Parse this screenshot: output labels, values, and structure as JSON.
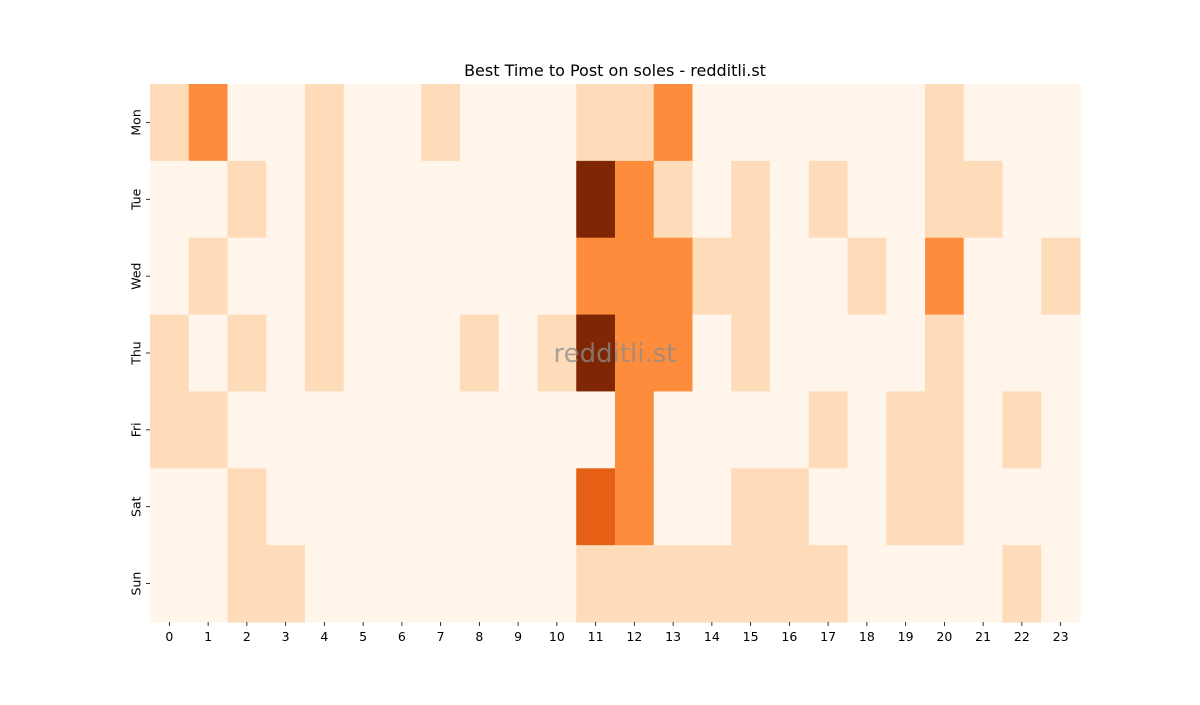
{
  "chart_data": {
    "type": "heatmap",
    "title": "Best Time to Post on soles - redditli.st",
    "watermark": "redditli.st",
    "x_categories": [
      "0",
      "1",
      "2",
      "3",
      "4",
      "5",
      "6",
      "7",
      "8",
      "9",
      "10",
      "11",
      "12",
      "13",
      "14",
      "15",
      "16",
      "17",
      "18",
      "19",
      "20",
      "21",
      "22",
      "23"
    ],
    "y_categories": [
      "Mon",
      "Tue",
      "Wed",
      "Thu",
      "Fri",
      "Sat",
      "Sun"
    ],
    "values": [
      [
        1,
        3,
        0,
        0,
        1,
        0,
        0,
        1,
        0,
        0,
        0,
        1,
        1,
        3,
        0,
        0,
        0,
        0,
        0,
        0,
        1,
        0,
        0,
        0
      ],
      [
        0,
        0,
        1,
        0,
        1,
        0,
        0,
        0,
        0,
        0,
        0,
        6,
        3,
        1,
        0,
        1,
        0,
        1,
        0,
        0,
        1,
        1,
        0,
        0
      ],
      [
        0,
        1,
        0,
        0,
        1,
        0,
        0,
        0,
        0,
        0,
        0,
        3,
        3,
        3,
        1,
        1,
        0,
        0,
        1,
        0,
        3,
        0,
        0,
        1
      ],
      [
        1,
        0,
        1,
        0,
        1,
        0,
        0,
        0,
        1,
        0,
        1,
        6,
        3,
        3,
        0,
        1,
        0,
        0,
        0,
        0,
        1,
        0,
        0,
        0
      ],
      [
        1,
        1,
        0,
        0,
        0,
        0,
        0,
        0,
        0,
        0,
        0,
        0,
        3,
        0,
        0,
        0,
        0,
        1,
        0,
        1,
        1,
        0,
        1,
        0
      ],
      [
        0,
        0,
        1,
        0,
        0,
        0,
        0,
        0,
        0,
        0,
        0,
        4,
        3,
        0,
        0,
        1,
        1,
        0,
        0,
        1,
        1,
        0,
        0,
        0
      ],
      [
        0,
        0,
        1,
        1,
        0,
        0,
        0,
        0,
        0,
        0,
        0,
        1,
        1,
        1,
        1,
        1,
        1,
        1,
        0,
        0,
        0,
        0,
        1,
        0
      ]
    ],
    "value_range": [
      0,
      6
    ],
    "colormap": [
      "#fff5eb",
      "#fdd0a2",
      "#fd8d3c",
      "#d94801",
      "#7f2704"
    ],
    "grid": false,
    "legend": "none"
  }
}
